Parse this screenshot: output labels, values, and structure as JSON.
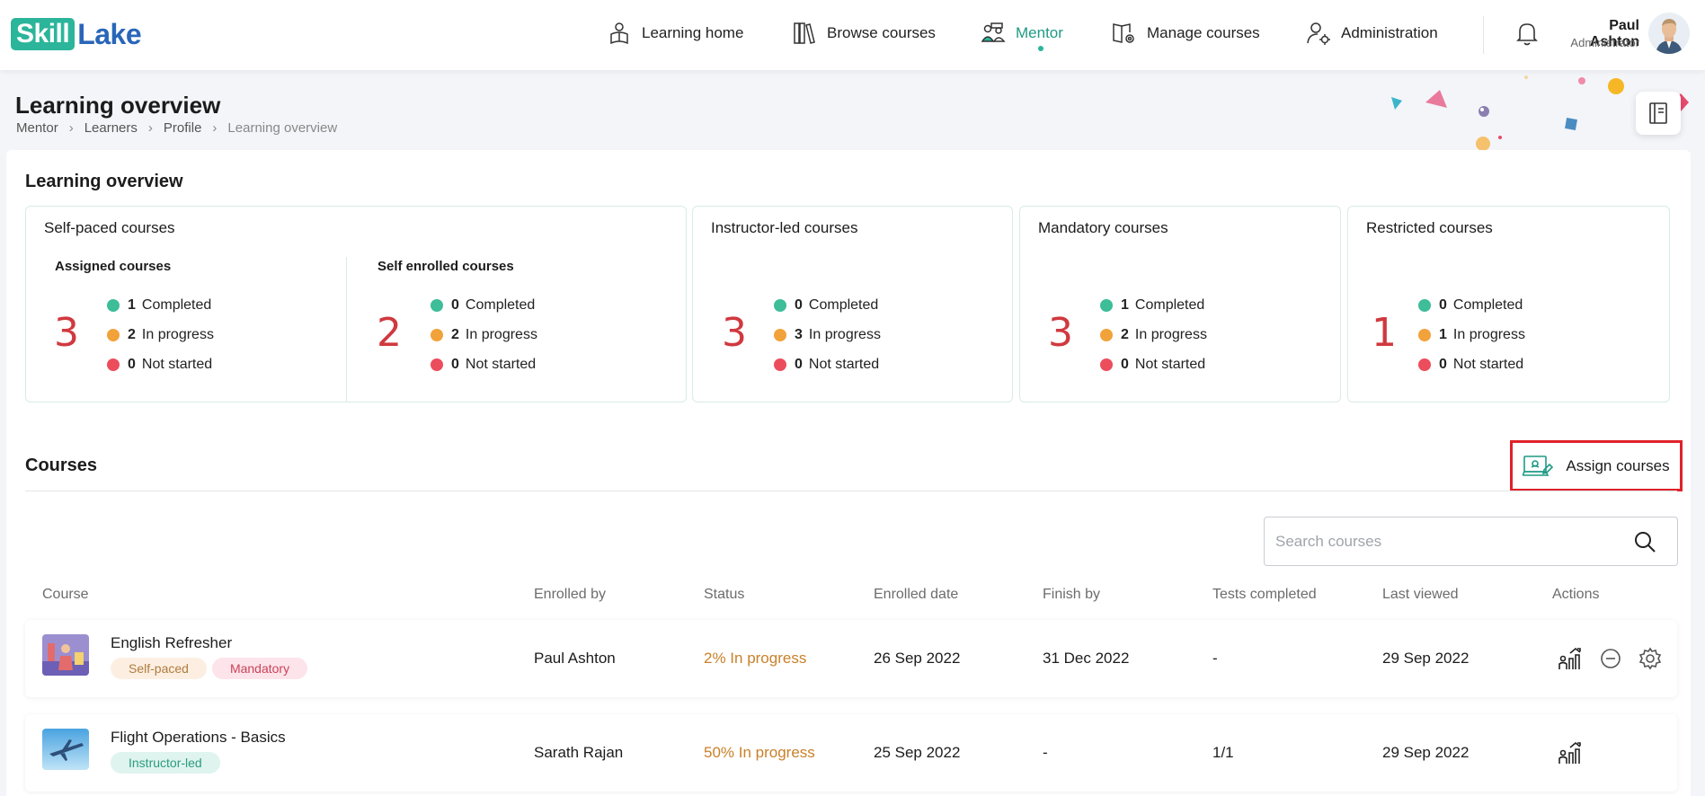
{
  "brand": {
    "logo_part1": "Skill",
    "logo_part2": "Lake"
  },
  "nav": {
    "items": [
      {
        "label": "Learning home",
        "icon": "learning-home-icon"
      },
      {
        "label": "Browse courses",
        "icon": "books-icon"
      },
      {
        "label": "Mentor",
        "icon": "mentor-icon",
        "active": true
      },
      {
        "label": "Manage courses",
        "icon": "manage-courses-icon"
      },
      {
        "label": "Administration",
        "icon": "admin-user-icon"
      }
    ]
  },
  "user": {
    "name": "Paul Ashton",
    "role": "Administrator"
  },
  "page": {
    "title": "Learning overview",
    "breadcrumb": [
      "Mentor",
      "Learners",
      "Profile",
      "Learning overview"
    ]
  },
  "overview": {
    "title": "Learning overview",
    "self_paced": {
      "title": "Self-paced courses",
      "assigned": {
        "label": "Assigned courses",
        "total": "3",
        "completed": "1",
        "in_progress": "2",
        "not_started": "0"
      },
      "self_enrolled": {
        "label": "Self enrolled courses",
        "total": "2",
        "completed": "0",
        "in_progress": "2",
        "not_started": "0"
      }
    },
    "instructor_led": {
      "title": "Instructor-led courses",
      "total": "3",
      "completed": "0",
      "in_progress": "3",
      "not_started": "0"
    },
    "mandatory": {
      "title": "Mandatory courses",
      "total": "3",
      "completed": "1",
      "in_progress": "2",
      "not_started": "0"
    },
    "restricted": {
      "title": "Restricted courses",
      "total": "1",
      "completed": "0",
      "in_progress": "1",
      "not_started": "0"
    },
    "legend": {
      "completed": "Completed",
      "in_progress": "In progress",
      "not_started": "Not started"
    },
    "colors": {
      "completed": "#3dbd98",
      "in_progress": "#f2a23a",
      "not_started": "#ec4d5c",
      "total": "#d0393f"
    }
  },
  "courses": {
    "title": "Courses",
    "assign_label": "Assign courses",
    "search_placeholder": "Search courses",
    "columns": [
      "Course",
      "Enrolled by",
      "Status",
      "Enrolled date",
      "Finish by",
      "Tests completed",
      "Last viewed",
      "Actions"
    ],
    "rows": [
      {
        "name": "English Refresher",
        "tags": [
          "Self-paced",
          "Mandatory"
        ],
        "enrolled_by": "Paul Ashton",
        "status": "2% In progress",
        "enrolled_date": "26 Sep 2022",
        "finish_by": "31 Dec 2022",
        "tests_completed": "-",
        "last_viewed": "29 Sep 2022"
      },
      {
        "name": "Flight Operations - Basics",
        "tags": [
          "Instructor-led"
        ],
        "enrolled_by": "Sarath Rajan",
        "status": "50% In progress",
        "enrolled_date": "25 Sep 2022",
        "finish_by": "-",
        "tests_completed": "1/1",
        "last_viewed": "29 Sep 2022"
      }
    ]
  }
}
